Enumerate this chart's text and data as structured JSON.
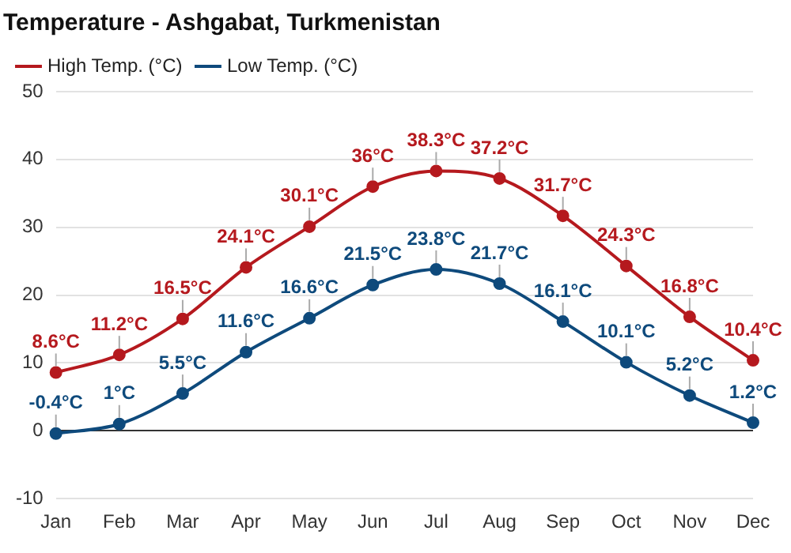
{
  "chart_data": {
    "type": "line",
    "title": "Temperature - Ashgabat, Turkmenistan",
    "categories": [
      "Jan",
      "Feb",
      "Mar",
      "Apr",
      "May",
      "Jun",
      "Jul",
      "Aug",
      "Sep",
      "Oct",
      "Nov",
      "Dec"
    ],
    "series": [
      {
        "name": "High Temp. (°C)",
        "color": "#b5191e",
        "values": [
          8.6,
          11.2,
          16.5,
          24.1,
          30.1,
          36,
          38.3,
          37.2,
          31.7,
          24.3,
          16.8,
          10.4
        ],
        "value_labels": [
          "8.6°C",
          "11.2°C",
          "16.5°C",
          "24.1°C",
          "30.1°C",
          "36°C",
          "38.3°C",
          "37.2°C",
          "31.7°C",
          "24.3°C",
          "16.8°C",
          "10.4°C"
        ]
      },
      {
        "name": "Low Temp. (°C)",
        "color": "#0e4a7c",
        "values": [
          -0.4,
          1,
          5.5,
          11.6,
          16.6,
          21.5,
          23.8,
          21.7,
          16.1,
          10.1,
          5.2,
          1.2
        ],
        "value_labels": [
          "-0.4°C",
          "1°C",
          "5.5°C",
          "11.6°C",
          "16.6°C",
          "21.5°C",
          "23.8°C",
          "21.7°C",
          "16.1°C",
          "10.1°C",
          "5.2°C",
          "1.2°C"
        ]
      }
    ],
    "ylim": [
      -10,
      50
    ],
    "yticks": [
      -10,
      0,
      10,
      20,
      30,
      40,
      50
    ],
    "grid": "y",
    "legend": "top left",
    "marker": "circle",
    "line_style": "solid"
  }
}
